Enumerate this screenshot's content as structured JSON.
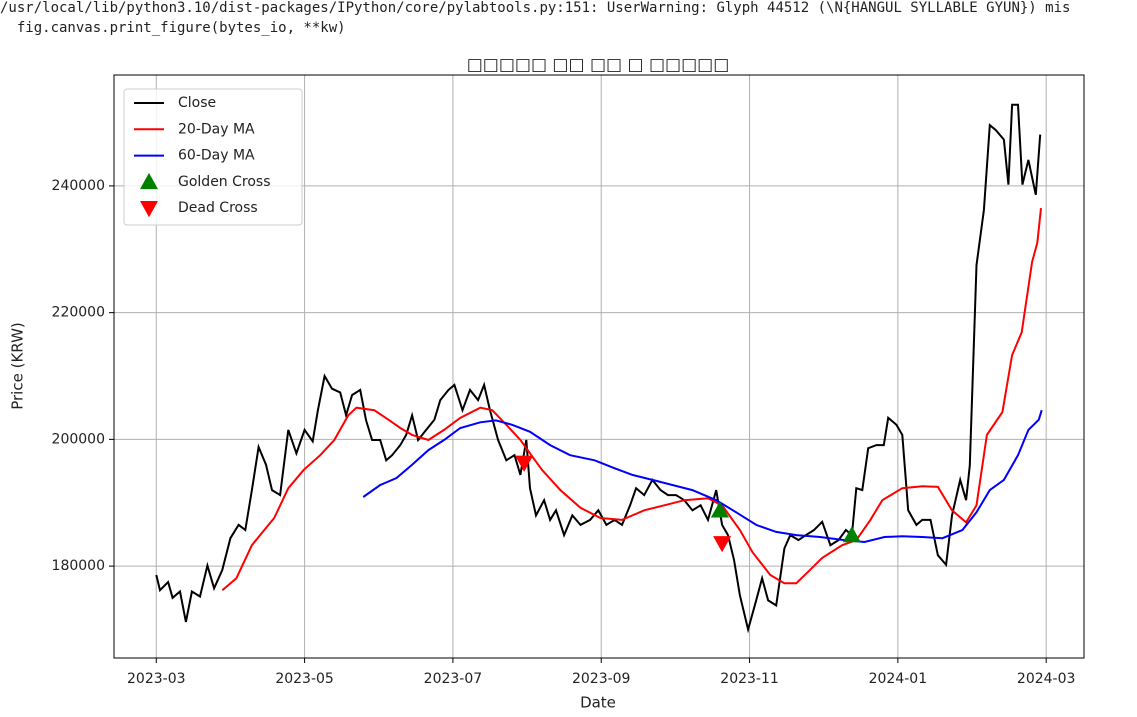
{
  "warning": [
    "/usr/local/lib/python3.10/dist-packages/IPython/core/pylabtools.py:151: UserWarning: Glyph 44512 (\\N{HANGUL SYLLABLE GYUN}) mis",
    "  fig.canvas.print_figure(bytes_io, **kw)"
  ],
  "chart_data": {
    "type": "line",
    "title": "□□□□□ □□ □□ □ □□□□□",
    "x_label": "Date",
    "y_label": "Price (KRW)",
    "xlim": [
      -0.57,
      12.51
    ],
    "ylim": [
      165500,
      257500
    ],
    "xticks": [
      {
        "value": 0,
        "label": "2023-03"
      },
      {
        "value": 2,
        "label": "2023-05"
      },
      {
        "value": 4,
        "label": "2023-07"
      },
      {
        "value": 6,
        "label": "2023-09"
      },
      {
        "value": 8,
        "label": "2023-11"
      },
      {
        "value": 10,
        "label": "2024-01"
      },
      {
        "value": 12,
        "label": "2024-03"
      }
    ],
    "yticks": [
      180000,
      200000,
      220000,
      240000
    ],
    "grid": true,
    "legend": "upper-left",
    "series": [
      {
        "name": "Close",
        "color": "#000000",
        "kind": "line",
        "x": [
          0,
          0.05,
          0.16,
          0.22,
          0.32,
          0.4,
          0.48,
          0.59,
          0.69,
          0.78,
          0.89,
          1.0,
          1.11,
          1.2,
          1.29,
          1.38,
          1.48,
          1.56,
          1.67,
          1.78,
          1.89,
          2.0,
          2.11,
          2.18,
          2.27,
          2.37,
          2.48,
          2.56,
          2.64,
          2.75,
          2.83,
          2.91,
          3.02,
          3.1,
          3.18,
          3.29,
          3.37,
          3.45,
          3.53,
          3.64,
          3.75,
          3.83,
          3.94,
          4.02,
          4.13,
          4.23,
          4.34,
          4.42,
          4.5,
          4.61,
          4.72,
          4.83,
          4.91,
          4.99,
          5.04,
          5.12,
          5.23,
          5.31,
          5.39,
          5.5,
          5.61,
          5.72,
          5.85,
          5.96,
          6.07,
          6.18,
          6.28,
          6.39,
          6.47,
          6.58,
          6.69,
          6.8,
          6.9,
          7.01,
          7.12,
          7.23,
          7.34,
          7.44,
          7.55,
          7.63,
          7.71,
          7.79,
          7.87,
          7.98,
          8.09,
          8.17,
          8.25,
          8.36,
          8.47,
          8.55,
          8.66,
          8.76,
          8.87,
          8.98,
          9.09,
          9.2,
          9.3,
          9.38,
          9.44,
          9.52,
          9.6,
          9.71,
          9.81,
          9.87,
          9.98,
          10.06,
          10.14,
          10.25,
          10.33,
          10.44,
          10.54,
          10.65,
          10.73,
          10.84,
          10.92,
          10.97,
          11.06,
          11.16,
          11.24,
          11.32,
          11.43,
          11.49,
          11.54,
          11.62,
          11.68,
          11.76,
          11.86,
          11.92
        ],
        "values": [
          178600,
          176200,
          177500,
          175000,
          176000,
          171200,
          176000,
          175200,
          180100,
          176500,
          179400,
          184400,
          186500,
          185700,
          192000,
          198800,
          196000,
          192000,
          191200,
          201500,
          197800,
          201500,
          199700,
          204600,
          210000,
          208000,
          207400,
          203800,
          207000,
          207800,
          203000,
          199900,
          199900,
          196700,
          197500,
          199100,
          200700,
          203800,
          199900,
          201500,
          203100,
          206200,
          207800,
          208600,
          204600,
          207800,
          206200,
          208600,
          204600,
          199900,
          196700,
          197500,
          194400,
          199900,
          192300,
          188000,
          190400,
          187300,
          188800,
          184900,
          188000,
          186500,
          187300,
          188800,
          186500,
          187300,
          186500,
          189600,
          192300,
          191200,
          193600,
          192000,
          191200,
          191200,
          190400,
          188800,
          189600,
          187300,
          192000,
          186500,
          184900,
          181000,
          175400,
          170000,
          174600,
          178100,
          174600,
          173800,
          182800,
          184900,
          184100,
          184900,
          185700,
          187000,
          183300,
          184100,
          185700,
          184900,
          192300,
          192000,
          198600,
          199100,
          199100,
          203400,
          202300,
          200700,
          188800,
          186500,
          187300,
          187300,
          181700,
          180200,
          188000,
          193600,
          190400,
          195900,
          227500,
          236200,
          249600,
          248800,
          247300,
          240200,
          252800,
          252800,
          240200,
          244100,
          238600,
          248100
        ]
      },
      {
        "name": "20-Day MA",
        "color": "#ff0000",
        "kind": "line",
        "x": [
          0.89,
          1.08,
          1.29,
          1.4,
          1.59,
          1.78,
          1.99,
          2.21,
          2.4,
          2.59,
          2.7,
          2.94,
          3.13,
          3.29,
          3.45,
          3.67,
          3.88,
          4.1,
          4.37,
          4.53,
          4.72,
          4.91,
          5.2,
          5.45,
          5.72,
          5.99,
          6.28,
          6.58,
          6.85,
          7.12,
          7.44,
          7.63,
          7.87,
          8.04,
          8.28,
          8.47,
          8.63,
          8.79,
          8.98,
          9.25,
          9.44,
          9.63,
          9.79,
          10.06,
          10.33,
          10.54,
          10.73,
          10.92,
          11.06,
          11.2,
          11.41,
          11.54,
          11.67,
          11.81,
          11.88,
          11.93
        ],
        "values": [
          176200,
          178100,
          183300,
          184900,
          187600,
          192300,
          195200,
          197500,
          199900,
          203800,
          205000,
          204600,
          203100,
          201800,
          200700,
          199900,
          201500,
          203400,
          205000,
          204600,
          202300,
          199900,
          195200,
          192000,
          189200,
          187600,
          187300,
          188800,
          189600,
          190400,
          190700,
          189600,
          185700,
          182200,
          178600,
          177300,
          177300,
          179100,
          181300,
          183300,
          184100,
          187300,
          190400,
          192300,
          192600,
          192500,
          188800,
          186900,
          189600,
          200700,
          204300,
          213300,
          216900,
          228000,
          231000,
          236500
        ]
      },
      {
        "name": "60-Day MA",
        "color": "#0000ff",
        "kind": "line",
        "x": [
          2.79,
          3.02,
          3.24,
          3.45,
          3.67,
          3.88,
          4.1,
          4.37,
          4.58,
          4.8,
          5.04,
          5.31,
          5.58,
          5.91,
          6.17,
          6.42,
          6.69,
          6.96,
          7.23,
          7.55,
          7.82,
          8.09,
          8.36,
          8.63,
          8.95,
          9.28,
          9.55,
          9.82,
          10.06,
          10.33,
          10.6,
          10.87,
          11.06,
          11.24,
          11.43,
          11.62,
          11.76,
          11.9,
          11.94
        ],
        "values": [
          190900,
          192800,
          193900,
          196000,
          198300,
          199900,
          201800,
          202700,
          203000,
          202300,
          201200,
          199100,
          197500,
          196700,
          195500,
          194400,
          193600,
          192800,
          192000,
          190400,
          188500,
          186500,
          185400,
          184900,
          184600,
          184100,
          183800,
          184600,
          184700,
          184600,
          184400,
          185700,
          188500,
          192000,
          193600,
          197500,
          201500,
          203100,
          204600
        ]
      },
      {
        "name": "Golden Cross",
        "color": "#008000",
        "kind": "marker-up",
        "x": [
          7.6,
          9.38
        ],
        "values": [
          188800,
          184900
        ]
      },
      {
        "name": "Dead Cross",
        "color": "#ff0000",
        "kind": "marker-down",
        "x": [
          4.96,
          7.63
        ],
        "values": [
          196300,
          183600
        ]
      }
    ]
  }
}
